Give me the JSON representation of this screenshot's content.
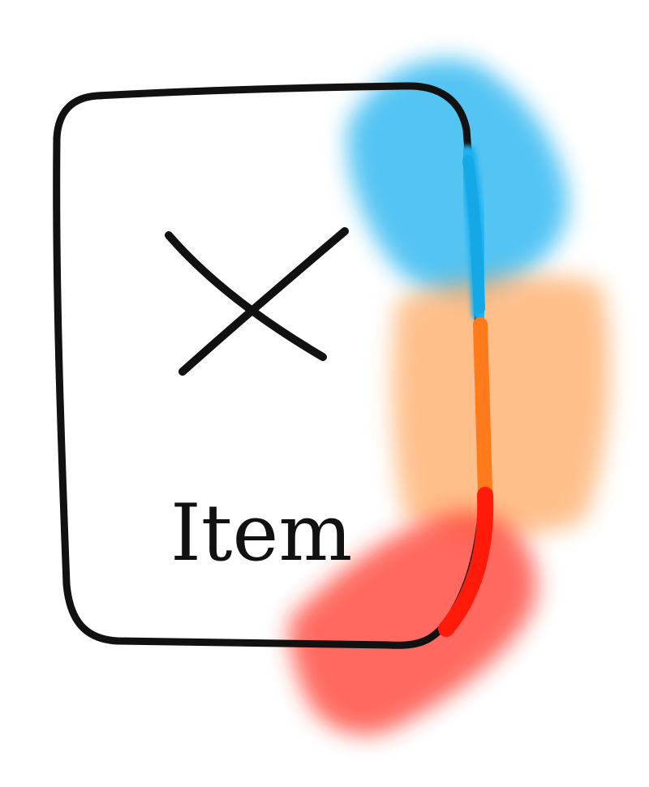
{
  "card": {
    "label": "Item",
    "placeholder_icon": "cross-icon",
    "outline_color": "#111111"
  },
  "edge_highlights": [
    {
      "name": "blue-segment",
      "color": "#1ab1f0"
    },
    {
      "name": "orange-segment",
      "color": "#ff7a1a"
    },
    {
      "name": "red-segment",
      "color": "#ff1a0a"
    }
  ]
}
